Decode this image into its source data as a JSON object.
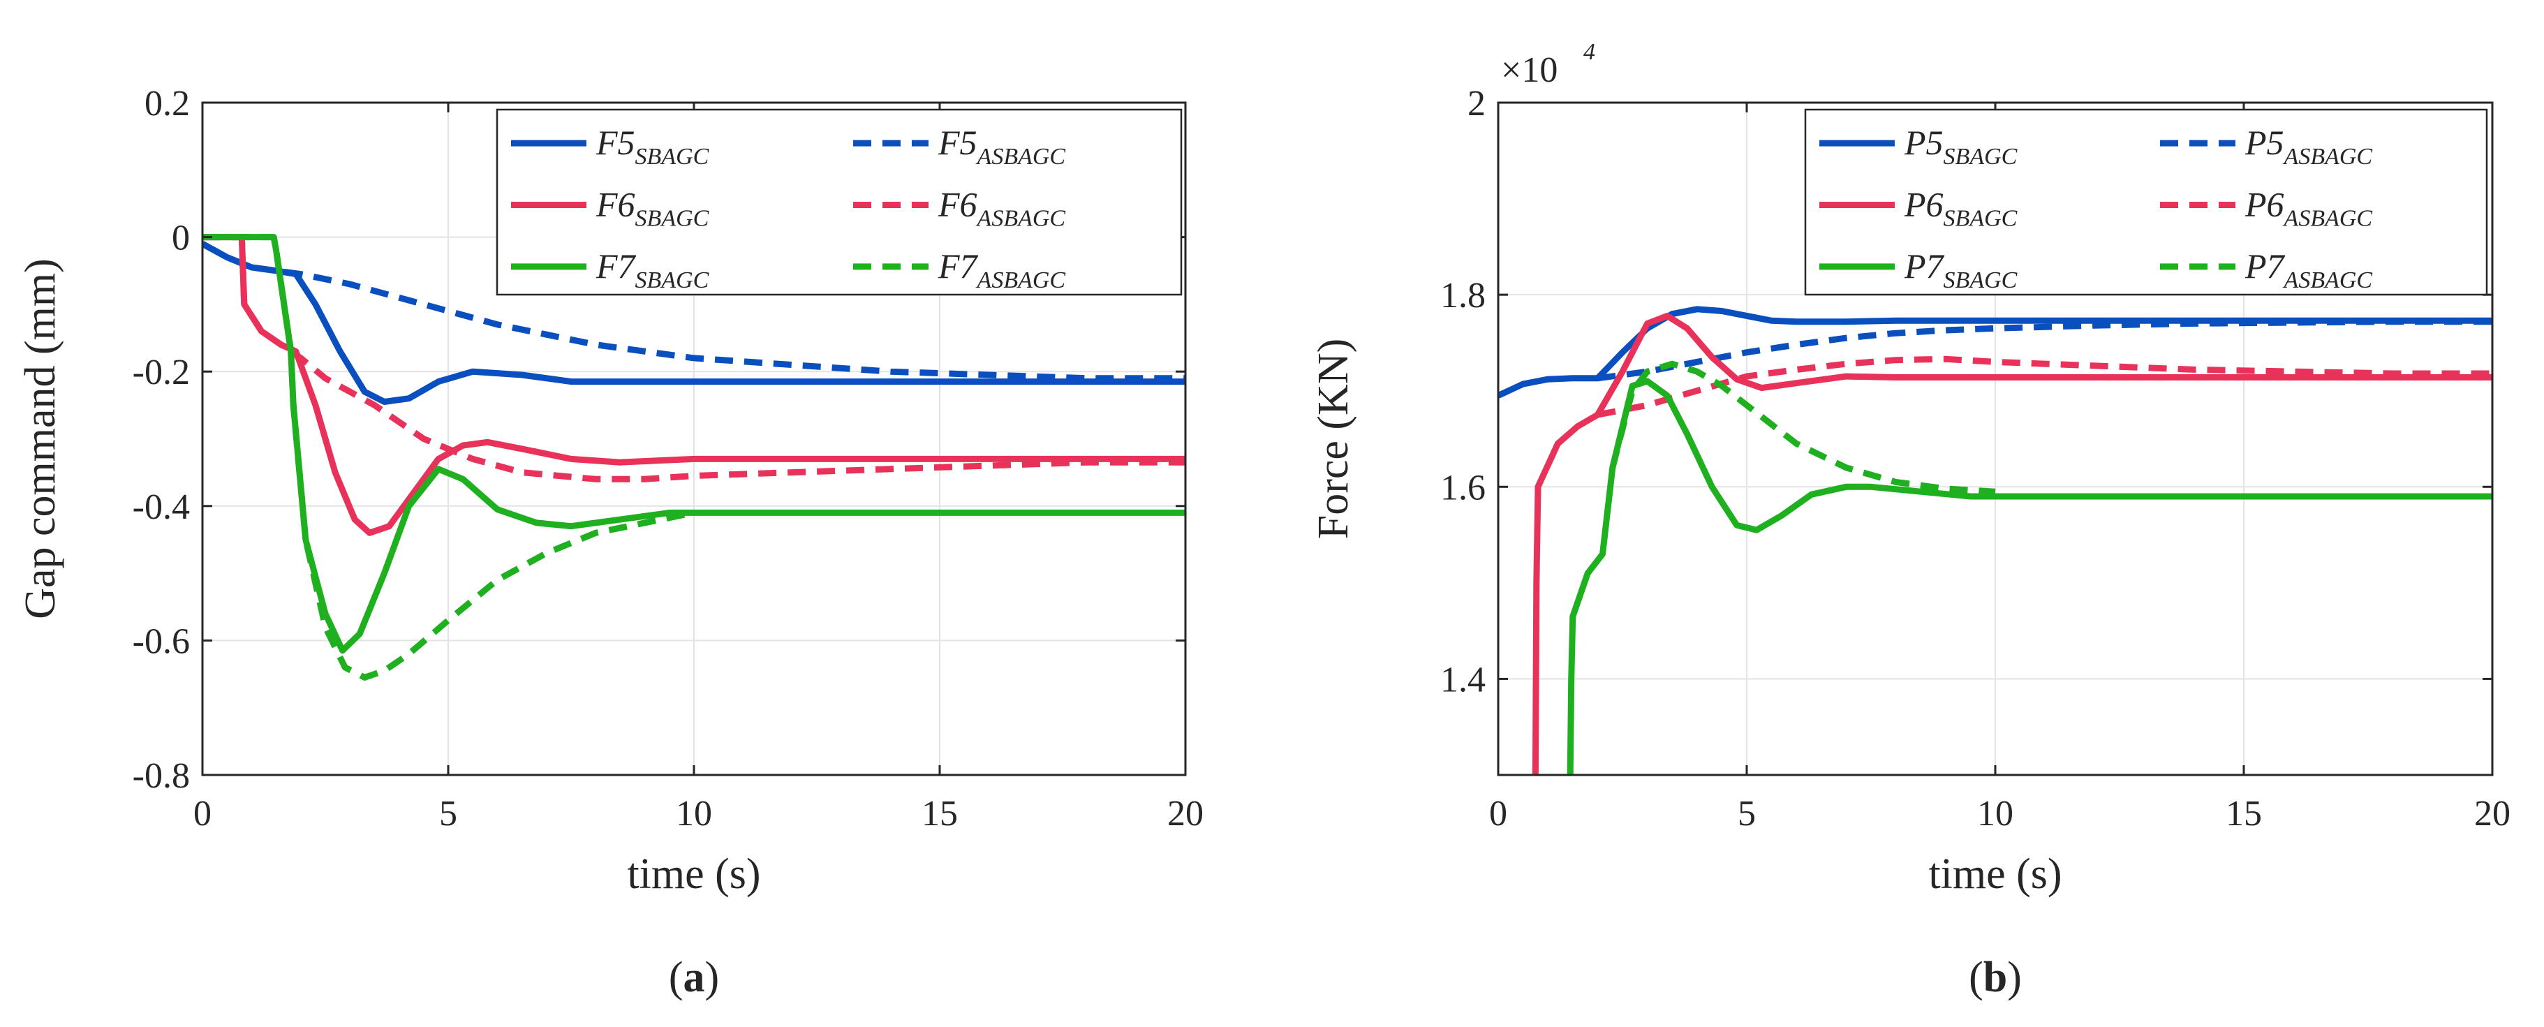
{
  "chart_data": [
    {
      "type": "line",
      "panel_label": "a",
      "xlabel": "time (s)",
      "ylabel": "Gap command (mm)",
      "xlim": [
        0,
        20
      ],
      "ylim": [
        -0.8,
        0.2
      ],
      "xticks": [
        "0",
        "5",
        "10",
        "15",
        "20"
      ],
      "yticks": [
        "-0.8",
        "-0.6",
        "-0.4",
        "-0.2",
        "0",
        "0.2"
      ],
      "grid": true,
      "legend_position": "top-right",
      "series": [
        {
          "name": "F5",
          "subscript": "SBAGC",
          "color": "#0a4fbf",
          "style": "solid",
          "x": [
            0,
            0.5,
            1,
            1.5,
            1.9,
            2.3,
            2.8,
            3.3,
            3.7,
            4.2,
            4.8,
            5.5,
            6.5,
            7.5,
            9,
            12,
            16,
            20
          ],
          "y": [
            -0.01,
            -0.03,
            -0.045,
            -0.05,
            -0.055,
            -0.1,
            -0.17,
            -0.23,
            -0.245,
            -0.24,
            -0.215,
            -0.2,
            -0.205,
            -0.215,
            -0.215,
            -0.215,
            -0.215,
            -0.215
          ]
        },
        {
          "name": "F5",
          "subscript": "ASBAGC",
          "color": "#0a4fbf",
          "style": "dashed",
          "x": [
            0,
            0.5,
            1,
            1.5,
            2,
            3,
            4,
            5,
            6,
            7,
            8,
            9,
            10,
            12,
            14,
            16,
            18,
            20
          ],
          "y": [
            -0.01,
            -0.03,
            -0.045,
            -0.05,
            -0.055,
            -0.07,
            -0.09,
            -0.11,
            -0.13,
            -0.145,
            -0.16,
            -0.17,
            -0.18,
            -0.19,
            -0.2,
            -0.205,
            -0.21,
            -0.21
          ]
        },
        {
          "name": "F6",
          "subscript": "SBAGC",
          "color": "#e8325a",
          "style": "solid",
          "x": [
            0,
            0.8,
            0.85,
            1.2,
            1.6,
            1.9,
            2.3,
            2.7,
            3.1,
            3.4,
            3.8,
            4.3,
            4.8,
            5.3,
            5.8,
            6.5,
            7.5,
            8.5,
            10,
            14,
            20
          ],
          "y": [
            0,
            0,
            -0.1,
            -0.14,
            -0.16,
            -0.17,
            -0.25,
            -0.35,
            -0.42,
            -0.44,
            -0.43,
            -0.38,
            -0.33,
            -0.31,
            -0.305,
            -0.315,
            -0.33,
            -0.335,
            -0.33,
            -0.33,
            -0.33
          ]
        },
        {
          "name": "F6",
          "subscript": "ASBAGC",
          "color": "#e8325a",
          "style": "dashed",
          "x": [
            0,
            0.8,
            0.85,
            1.2,
            1.6,
            2,
            2.5,
            3,
            3.5,
            4.5,
            5.5,
            6.5,
            8,
            9,
            10,
            12,
            14,
            16,
            18,
            20
          ],
          "y": [
            0,
            0,
            -0.1,
            -0.14,
            -0.16,
            -0.18,
            -0.21,
            -0.23,
            -0.25,
            -0.3,
            -0.33,
            -0.35,
            -0.36,
            -0.36,
            -0.355,
            -0.35,
            -0.345,
            -0.34,
            -0.335,
            -0.335
          ]
        },
        {
          "name": "F7",
          "subscript": "SBAGC",
          "color": "#1fb01f",
          "style": "solid",
          "x": [
            0,
            1.45,
            1.5,
            1.8,
            1.85,
            2.1,
            2.5,
            2.85,
            3.2,
            3.7,
            4.2,
            4.8,
            5.3,
            6,
            6.8,
            7.5,
            8.5,
            9.5,
            11,
            14,
            20
          ],
          "y": [
            0,
            0,
            -0.02,
            -0.17,
            -0.25,
            -0.45,
            -0.56,
            -0.615,
            -0.59,
            -0.5,
            -0.4,
            -0.345,
            -0.36,
            -0.405,
            -0.425,
            -0.43,
            -0.42,
            -0.41,
            -0.41,
            -0.41,
            -0.41
          ]
        },
        {
          "name": "F7",
          "subscript": "ASBAGC",
          "color": "#1fb01f",
          "style": "dashed",
          "x": [
            0,
            1.45,
            1.5,
            1.8,
            1.85,
            2.1,
            2.5,
            2.9,
            3.3,
            3.7,
            4.2,
            5,
            6,
            7,
            8,
            9,
            10
          ],
          "y": [
            0,
            0,
            -0.02,
            -0.17,
            -0.25,
            -0.45,
            -0.58,
            -0.64,
            -0.655,
            -0.645,
            -0.62,
            -0.57,
            -0.51,
            -0.47,
            -0.44,
            -0.425,
            -0.41
          ]
        }
      ]
    },
    {
      "type": "line",
      "panel_label": "b",
      "xlabel": "time (s)",
      "ylabel": "Force (KN)",
      "y_multiplier": "×10",
      "y_multiplier_exponent": "4",
      "xlim": [
        0,
        20
      ],
      "ylim": [
        1.3,
        2.0
      ],
      "xticks": [
        "0",
        "5",
        "10",
        "15",
        "20"
      ],
      "yticks": [
        "1.4",
        "1.6",
        "1.8",
        "2"
      ],
      "grid": true,
      "legend_position": "top-right",
      "series": [
        {
          "name": "P5",
          "subscript": "SBAGC",
          "color": "#0a4fbf",
          "style": "solid",
          "x": [
            0,
            0.5,
            1,
            1.5,
            2,
            2.5,
            3,
            3.5,
            4,
            4.5,
            5,
            5.5,
            6,
            7,
            8,
            10,
            14,
            20
          ],
          "y": [
            1.695,
            1.707,
            1.712,
            1.713,
            1.713,
            1.74,
            1.765,
            1.78,
            1.785,
            1.783,
            1.778,
            1.773,
            1.772,
            1.772,
            1.773,
            1.773,
            1.773,
            1.773
          ]
        },
        {
          "name": "P5",
          "subscript": "ASBAGC",
          "color": "#0a4fbf",
          "style": "dashed",
          "x": [
            2,
            3,
            4,
            5,
            6,
            7,
            8,
            9,
            10,
            12,
            14,
            16,
            18,
            20
          ],
          "y": [
            1.713,
            1.72,
            1.73,
            1.74,
            1.748,
            1.755,
            1.76,
            1.763,
            1.765,
            1.768,
            1.77,
            1.771,
            1.772,
            1.772
          ]
        },
        {
          "name": "P6",
          "subscript": "SBAGC",
          "color": "#e8325a",
          "style": "solid",
          "x": [
            0.75,
            0.77,
            0.8,
            1.2,
            1.6,
            2,
            2.5,
            3,
            3.4,
            3.8,
            4.3,
            4.8,
            5.3,
            6,
            7,
            8,
            10,
            14,
            20
          ],
          "y": [
            1.3,
            1.5,
            1.6,
            1.645,
            1.663,
            1.675,
            1.72,
            1.77,
            1.778,
            1.765,
            1.735,
            1.712,
            1.703,
            1.708,
            1.715,
            1.714,
            1.714,
            1.714,
            1.714
          ]
        },
        {
          "name": "P6",
          "subscript": "ASBAGC",
          "color": "#e8325a",
          "style": "dashed",
          "x": [
            2,
            3,
            4,
            5,
            6,
            7,
            8,
            9,
            10,
            12,
            14,
            16,
            18,
            20
          ],
          "y": [
            1.675,
            1.685,
            1.7,
            1.715,
            1.722,
            1.728,
            1.732,
            1.733,
            1.73,
            1.726,
            1.722,
            1.72,
            1.718,
            1.718
          ]
        },
        {
          "name": "P7",
          "subscript": "SBAGC",
          "color": "#1fb01f",
          "style": "solid",
          "x": [
            1.45,
            1.47,
            1.5,
            1.8,
            2.1,
            2.3,
            2.7,
            3,
            3.4,
            3.8,
            4.3,
            4.8,
            5.2,
            5.7,
            6.3,
            7,
            7.5,
            8.5,
            9.5,
            11,
            14,
            20
          ],
          "y": [
            1.3,
            1.4,
            1.465,
            1.51,
            1.53,
            1.62,
            1.705,
            1.71,
            1.695,
            1.655,
            1.6,
            1.56,
            1.555,
            1.57,
            1.592,
            1.6,
            1.6,
            1.595,
            1.59,
            1.59,
            1.59,
            1.59
          ]
        },
        {
          "name": "P7",
          "subscript": "ASBAGC",
          "color": "#1fb01f",
          "style": "dashed",
          "x": [
            2.3,
            2.7,
            3,
            3.5,
            4,
            4.5,
            5,
            5.5,
            6,
            7,
            8,
            9,
            10
          ],
          "y": [
            1.62,
            1.7,
            1.72,
            1.728,
            1.72,
            1.705,
            1.685,
            1.665,
            1.645,
            1.62,
            1.605,
            1.598,
            1.595
          ]
        }
      ]
    }
  ]
}
